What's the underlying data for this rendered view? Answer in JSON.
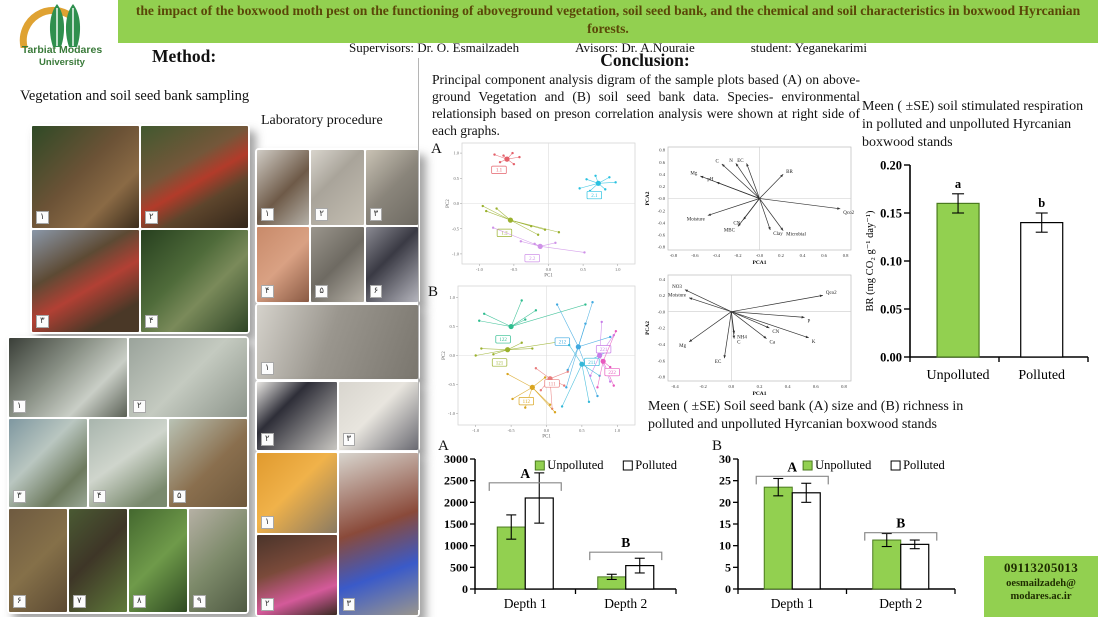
{
  "header": {
    "title": "the impact of the boxwood moth pest on the functioning of aboveground vegetation, soil seed bank, and the chemical and soil characteristics in boxwood Hyrcanian forests.",
    "supervisors": "Supervisors: Dr. O. Esmailzadeh",
    "advisors": "Avisors: Dr. A.Nouraie",
    "student": "student: Yeganekarimi",
    "bg_color": "#92d050",
    "title_color": "#5a4708"
  },
  "logo": {
    "name": "tarbiat-modares-university-logo",
    "line1": "Tarbiat Modares",
    "line2": "University"
  },
  "method": {
    "heading": "Method:",
    "sampling_caption": "Vegetation and soil seed bank sampling",
    "lab_caption": "Laboratory procedure",
    "field_rows": [
      [
        {
          "n": "۱",
          "k": "f1"
        },
        {
          "n": "۲",
          "k": "f2"
        }
      ],
      [
        {
          "n": "۳",
          "k": "f3"
        },
        {
          "n": "۴",
          "k": "f4"
        }
      ]
    ],
    "greenhouse_rows": [
      [
        {
          "n": "۱",
          "k": "g1"
        },
        {
          "n": "۲",
          "k": "g2"
        }
      ],
      [
        {
          "n": "۳",
          "k": "g3"
        },
        {
          "n": "۴",
          "k": "g4"
        },
        {
          "n": "۵",
          "k": "g5"
        }
      ],
      [
        {
          "n": "۶",
          "k": "g6"
        },
        {
          "n": "۷",
          "k": "g7"
        },
        {
          "n": "۸",
          "k": "g8"
        },
        {
          "n": "۹",
          "k": "g9"
        }
      ]
    ],
    "lab1_rows": [
      [
        {
          "n": "۱",
          "k": "l1"
        },
        {
          "n": "۲",
          "k": "l2"
        },
        {
          "n": "۳",
          "k": "l3"
        }
      ],
      [
        {
          "n": "۴",
          "k": "l4"
        },
        {
          "n": "۵",
          "k": "l5"
        },
        {
          "n": "۶",
          "k": "l6"
        }
      ]
    ],
    "lab_bench_rows": [
      [
        {
          "n": "۱",
          "k": "l7"
        }
      ]
    ],
    "lab_pair_rows": [
      [
        {
          "n": "۲",
          "k": "l8"
        },
        {
          "n": "۳",
          "k": "l9"
        }
      ]
    ],
    "lab2_cols": [
      [
        {
          "n": "۱",
          "k": "lA"
        },
        {
          "n": "۲",
          "k": "lB"
        }
      ],
      [
        {
          "n": "۳",
          "k": "lC"
        }
      ]
    ]
  },
  "conclusion": {
    "heading": "Conclusion:",
    "paragraph": "Principal component analysis digram of the sample plots based (A) on above-ground Vegetation and (B) soil seed bank data. Species- environmental relationsiph based on preson correlation analysis were shown at right side of  each graphs.",
    "panel_a": "A",
    "panel_b": "B"
  },
  "captions": {
    "respiration": "Meen ( ±SE)  soil stimulated respiration in polluted and unpolluted Hyrcanian boxwood  stands",
    "seedbank": "Meen ( ±SE) Soil seed bank (A) size and  (B) richness in polluted and unpolluted Hyrcanian boxwood  stands",
    "bar_a_label": "A",
    "bar_b_label": "B"
  },
  "contact": {
    "phone": "09113205013",
    "email_line1": "oesmailzadeh@",
    "email_line2": "modares.ac.ir"
  },
  "chart_data": [
    {
      "id": "pca-samples-vegetation",
      "type": "scatter_clusters",
      "xlabel": "PC1",
      "ylabel": "PC2",
      "xlim": [
        -1.25,
        1.25
      ],
      "ylim": [
        -1.2,
        1.2
      ],
      "xticks": [
        -1.0,
        -0.5,
        0.0,
        0.5,
        1.0
      ],
      "yticks": [
        -1.0,
        -0.5,
        0.0,
        0.5,
        1.0
      ],
      "clusters": [
        {
          "label": "1.1",
          "color": "#e4606a",
          "cx": -0.6,
          "cy": 0.88,
          "loff": [
            -8,
            7
          ],
          "points": [
            [
              -0.78,
              0.97
            ],
            [
              -0.52,
              1.0
            ],
            [
              -0.42,
              0.92
            ],
            [
              -0.5,
              0.78
            ],
            [
              -0.7,
              0.82
            ],
            [
              -0.65,
              0.95
            ]
          ]
        },
        {
          "label": "2.1",
          "color": "#29c1e0",
          "cx": 0.72,
          "cy": 0.4,
          "loff": [
            -4,
            8
          ],
          "points": [
            [
              0.45,
              0.3
            ],
            [
              0.55,
              0.48
            ],
            [
              0.68,
              0.55
            ],
            [
              0.88,
              0.52
            ],
            [
              0.97,
              0.42
            ],
            [
              0.82,
              0.28
            ],
            [
              0.6,
              0.25
            ]
          ]
        },
        {
          "label": "1.2",
          "color": "#9ab12d",
          "cx": -0.55,
          "cy": -0.33,
          "loff": [
            -6,
            9
          ],
          "points": [
            [
              -0.95,
              -0.05
            ],
            [
              -0.9,
              -0.15
            ],
            [
              -0.75,
              -0.1
            ],
            [
              -0.25,
              -0.45
            ],
            [
              -0.05,
              -0.52
            ],
            [
              0.15,
              -0.57
            ],
            [
              -0.15,
              -0.62
            ]
          ]
        },
        {
          "label": "2.2",
          "color": "#cf92e8",
          "cx": -0.12,
          "cy": -0.85,
          "loff": [
            -8,
            8
          ],
          "points": [
            [
              -0.8,
              -0.48
            ],
            [
              -0.4,
              -0.75
            ],
            [
              0.1,
              -0.78
            ],
            [
              0.52,
              -0.97
            ],
            [
              -0.2,
              -0.8
            ]
          ]
        }
      ]
    },
    {
      "id": "pca-biplot-vegetation",
      "type": "biplot",
      "xlabel": "PCA1",
      "ylabel": "PCA2",
      "xlim": [
        -0.85,
        0.85
      ],
      "ylim": [
        -0.85,
        0.85
      ],
      "tick_step": 0.2,
      "vectors": [
        {
          "label": "C",
          "x": -0.35,
          "y": 0.57
        },
        {
          "label": "N",
          "x": -0.22,
          "y": 0.58
        },
        {
          "label": "EC",
          "x": -0.12,
          "y": 0.58
        },
        {
          "label": "Mg",
          "x": -0.55,
          "y": 0.37
        },
        {
          "label": "pH",
          "x": -0.4,
          "y": 0.27
        },
        {
          "label": "BR",
          "x": 0.22,
          "y": 0.4
        },
        {
          "label": "Qco2",
          "x": 0.75,
          "y": -0.17
        },
        {
          "label": "Moisture",
          "x": -0.48,
          "y": -0.28
        },
        {
          "label": "CN",
          "x": -0.15,
          "y": -0.35
        },
        {
          "label": "MBC",
          "x": -0.2,
          "y": -0.46
        },
        {
          "label": "Clay",
          "x": 0.1,
          "y": -0.52
        },
        {
          "label": "Microbial",
          "x": 0.22,
          "y": -0.53
        }
      ]
    },
    {
      "id": "pca-samples-seedbank",
      "type": "scatter_clusters",
      "xlabel": "PC1",
      "ylabel": "PC2",
      "xlim": [
        -1.25,
        1.25
      ],
      "ylim": [
        -1.2,
        1.2
      ],
      "xticks": [
        -1.0,
        -0.5,
        0.0,
        0.5,
        1.0
      ],
      "yticks": [
        -1.0,
        -0.5,
        0.0,
        0.5,
        1.0
      ],
      "clusters": [
        {
          "label": "122",
          "color": "#2ebd8f",
          "cx": -0.5,
          "cy": 0.5,
          "loff": [
            -8,
            9
          ],
          "points": [
            [
              -0.88,
              0.72
            ],
            [
              -0.35,
              0.95
            ],
            [
              -0.15,
              0.78
            ],
            [
              0.55,
              0.88
            ],
            [
              -0.95,
              0.6
            ],
            [
              -0.3,
              0.62
            ]
          ]
        },
        {
          "label": "121",
          "color": "#9ab12d",
          "cx": -0.55,
          "cy": 0.1,
          "loff": [
            -8,
            9
          ],
          "points": [
            [
              -1.0,
              0.0
            ],
            [
              -0.92,
              0.12
            ],
            [
              -0.35,
              0.22
            ],
            [
              0.25,
              0.25
            ],
            [
              -0.2,
              0.12
            ],
            [
              -0.75,
              0.02
            ]
          ]
        },
        {
          "label": "212",
          "color": "#3fa9e0",
          "cx": 0.45,
          "cy": 0.15,
          "loff": [
            -16,
            -9
          ],
          "points": [
            [
              0.15,
              0.88
            ],
            [
              0.65,
              0.92
            ],
            [
              0.28,
              -0.55
            ],
            [
              0.72,
              -0.7
            ],
            [
              0.9,
              0.32
            ],
            [
              0.3,
              -0.25
            ],
            [
              0.55,
              0.55
            ]
          ]
        },
        {
          "label": "211",
          "color": "#35b8d8",
          "cx": 0.5,
          "cy": -0.15,
          "loff": [
            10,
            -6
          ],
          "points": [
            [
              0.22,
              -0.88
            ],
            [
              0.6,
              -0.8
            ],
            [
              0.88,
              0.08
            ],
            [
              0.32,
              0.18
            ],
            [
              0.75,
              -0.35
            ]
          ]
        },
        {
          "label": "221",
          "color": "#c77ce8",
          "cx": 0.75,
          "cy": 0.0,
          "loff": [
            4,
            -10
          ],
          "points": [
            [
              0.78,
              0.58
            ],
            [
              0.95,
              0.35
            ],
            [
              0.62,
              -0.35
            ],
            [
              0.9,
              -0.45
            ],
            [
              0.85,
              0.15
            ]
          ]
        },
        {
          "label": "222",
          "color": "#e85abf",
          "cx": 0.8,
          "cy": -0.1,
          "loff": [
            9,
            7
          ],
          "points": [
            [
              0.98,
              0.42
            ],
            [
              0.95,
              -0.52
            ],
            [
              0.72,
              -0.55
            ],
            [
              0.9,
              -0.2
            ]
          ]
        },
        {
          "label": "111",
          "color": "#e87c7c",
          "cx": 0.05,
          "cy": -0.4,
          "loff": [
            2,
            1
          ],
          "points": [
            [
              -0.15,
              -0.22
            ],
            [
              0.3,
              -0.28
            ],
            [
              0.08,
              -0.92
            ],
            [
              -0.08,
              -0.6
            ],
            [
              0.25,
              -0.52
            ]
          ]
        },
        {
          "label": "112",
          "color": "#d9a520",
          "cx": -0.2,
          "cy": -0.55,
          "loff": [
            -6,
            10
          ],
          "points": [
            [
              -0.55,
              -0.32
            ],
            [
              -0.48,
              -0.75
            ],
            [
              0.05,
              -0.85
            ],
            [
              -0.02,
              -0.38
            ],
            [
              0.12,
              -0.98
            ],
            [
              -0.3,
              -0.9
            ]
          ]
        }
      ]
    },
    {
      "id": "pca-biplot-seedbank",
      "type": "biplot",
      "xlabel": "PCA1",
      "ylabel": "PCA2",
      "xlim": [
        -0.45,
        0.85
      ],
      "ylim": [
        -0.85,
        0.45
      ],
      "tick_step": 0.2,
      "vectors": [
        {
          "label": "NO3",
          "x": -0.33,
          "y": 0.27
        },
        {
          "label": "Moisture",
          "x": -0.3,
          "y": 0.17
        },
        {
          "label": "Qco2",
          "x": 0.65,
          "y": 0.2
        },
        {
          "label": "P",
          "x": 0.52,
          "y": -0.07
        },
        {
          "label": "CN",
          "x": 0.27,
          "y": -0.2
        },
        {
          "label": "NH4",
          "x": 0.02,
          "y": -0.27
        },
        {
          "label": "C",
          "x": 0.02,
          "y": -0.33
        },
        {
          "label": "Ca",
          "x": 0.25,
          "y": -0.33
        },
        {
          "label": "K",
          "x": 0.55,
          "y": -0.32
        },
        {
          "label": "Mg",
          "x": -0.3,
          "y": -0.37
        },
        {
          "label": "EC",
          "x": -0.05,
          "y": -0.57
        }
      ]
    },
    {
      "id": "seedbank-size-bar",
      "type": "grouped_bar",
      "categories": [
        "Depth 1",
        "Depth 2"
      ],
      "series": [
        {
          "name": "Unpolluted",
          "color": "#92d050",
          "edge": "#4a7a1e",
          "values": [
            1430,
            280
          ],
          "errors": [
            280,
            60
          ]
        },
        {
          "name": "Polluted",
          "color": "#ffffff",
          "edge": "#000000",
          "values": [
            2100,
            540
          ],
          "errors": [
            580,
            170
          ]
        }
      ],
      "ylim": [
        0,
        3000
      ],
      "ytick_step": 500,
      "brackets": [
        {
          "label": "A",
          "y": 2450
        },
        {
          "label": "B",
          "y": 850
        }
      ]
    },
    {
      "id": "seedbank-richness-bar",
      "type": "grouped_bar",
      "categories": [
        "Depth 1",
        "Depth 2"
      ],
      "series": [
        {
          "name": "Unpolluted",
          "color": "#92d050",
          "edge": "#4a7a1e",
          "values": [
            23.5,
            11.3
          ],
          "errors": [
            2,
            1.5
          ]
        },
        {
          "name": "Polluted",
          "color": "#ffffff",
          "edge": "#000000",
          "values": [
            22.2,
            10.3
          ],
          "errors": [
            2.2,
            1
          ]
        }
      ],
      "ylim": [
        0,
        30
      ],
      "ytick_step": 5,
      "brackets": [
        {
          "label": "A",
          "y": 26
        },
        {
          "label": "B",
          "y": 13
        }
      ]
    },
    {
      "id": "basal-respiration-bar",
      "type": "bar",
      "categories": [
        "Unpolluted",
        "Polluted"
      ],
      "values": [
        0.16,
        0.14
      ],
      "errors": [
        0.01,
        0.01
      ],
      "letters": [
        "a",
        "b"
      ],
      "colors": [
        "#92d050",
        "#ffffff"
      ],
      "edges": [
        "#4a7a1e",
        "#000000"
      ],
      "ylabel": "BR (mg CO₂ g⁻¹ day⁻¹)",
      "ylim": [
        0,
        0.2
      ],
      "ytick_step": 0.05
    }
  ]
}
